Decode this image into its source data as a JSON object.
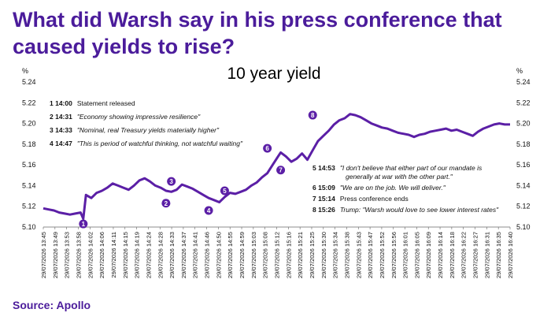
{
  "headline": "What did Warsh say in his press conference that caused yields to rise?",
  "source": "Source: Apollo",
  "chart_data": {
    "type": "line",
    "title": "10 year yield",
    "y_unit": "%",
    "ylim": [
      5.1,
      5.24
    ],
    "yticks": [
      "5.10",
      "5.12",
      "5.14",
      "5.16",
      "5.18",
      "5.20",
      "5.22",
      "5.24"
    ],
    "line_color": "#5b1fa6",
    "xticks": [
      "29/07/2026 13:45",
      "29/07/2026 13:49",
      "29/07/2026 13:53",
      "29/07/2026 13:58",
      "29/07/2026 14:02",
      "29/07/2026 14:06",
      "29/07/2026 14:11",
      "29/07/2026 14:15",
      "29/07/2026 14:19",
      "29/07/2026 14:24",
      "29/07/2026 14:28",
      "29/07/2026 14:33",
      "29/07/2026 14:37",
      "29/07/2026 14:41",
      "29/07/2026 14:46",
      "29/07/2026 14:50",
      "29/07/2026 14:55",
      "29/07/2026 14:59",
      "29/07/2026 15:03",
      "29/07/2026 15:08",
      "29/07/2026 15:12",
      "29/07/2026 15:16",
      "29/07/2026 15:21",
      "29/07/2026 15:25",
      "29/07/2026 15:30",
      "29/07/2026 15:34",
      "29/07/2026 15:38",
      "29/07/2026 15:43",
      "29/07/2026 15:47",
      "29/07/2026 15:52",
      "29/07/2026 15:56",
      "29/07/2026 16:01",
      "29/07/2026 16:05",
      "29/07/2026 16:09",
      "29/07/2026 16:14",
      "29/07/2026 16:18",
      "29/07/2026 16:22",
      "29/07/2026 16:27",
      "29/07/2026 16:31",
      "29/07/2026 16:35",
      "29/07/2026 16:40"
    ],
    "series": [
      {
        "x": [
          "13:45",
          "13:47",
          "13:49",
          "13:51",
          "13:53",
          "13:55",
          "13:57",
          "13:59",
          "14:00",
          "14:01",
          "14:03",
          "14:05",
          "14:07",
          "14:09",
          "14:11",
          "14:13",
          "14:15",
          "14:17",
          "14:19",
          "14:21",
          "14:23",
          "14:25",
          "14:27",
          "14:29",
          "14:31",
          "14:33",
          "14:35",
          "14:37",
          "14:39",
          "14:41",
          "14:43",
          "14:45",
          "14:47",
          "14:49",
          "14:51",
          "14:53",
          "14:55",
          "14:57",
          "14:59",
          "15:01",
          "15:03",
          "15:05",
          "15:07",
          "15:09",
          "15:11",
          "15:13",
          "15:14",
          "15:16",
          "15:18",
          "15:20",
          "15:22",
          "15:24",
          "15:26",
          "15:28",
          "15:30",
          "15:32",
          "15:34",
          "15:36",
          "15:38",
          "15:40",
          "15:42",
          "15:44",
          "15:46",
          "15:48",
          "15:50",
          "15:52",
          "15:54",
          "15:56",
          "15:58",
          "16:00",
          "16:02",
          "16:04",
          "16:06",
          "16:08",
          "16:10",
          "16:12",
          "16:14",
          "16:16",
          "16:18",
          "16:20",
          "16:22",
          "16:24",
          "16:26",
          "16:28",
          "16:30",
          "16:32",
          "16:34",
          "16:36",
          "16:38",
          "16:40"
        ],
        "values": [
          5.118,
          5.117,
          5.116,
          5.114,
          5.113,
          5.112,
          5.113,
          5.114,
          5.108,
          5.131,
          5.128,
          5.133,
          5.135,
          5.138,
          5.142,
          5.14,
          5.138,
          5.136,
          5.14,
          5.145,
          5.147,
          5.144,
          5.14,
          5.138,
          5.135,
          5.134,
          5.136,
          5.141,
          5.139,
          5.137,
          5.134,
          5.131,
          5.128,
          5.126,
          5.124,
          5.129,
          5.133,
          5.132,
          5.134,
          5.136,
          5.14,
          5.143,
          5.148,
          5.152,
          5.16,
          5.168,
          5.172,
          5.168,
          5.163,
          5.166,
          5.171,
          5.165,
          5.174,
          5.183,
          5.188,
          5.193,
          5.199,
          5.203,
          5.205,
          5.209,
          5.208,
          5.206,
          5.203,
          5.2,
          5.198,
          5.196,
          5.195,
          5.193,
          5.191,
          5.19,
          5.189,
          5.187,
          5.189,
          5.19,
          5.192,
          5.193,
          5.194,
          5.195,
          5.193,
          5.194,
          5.192,
          5.19,
          5.188,
          5.192,
          5.195,
          5.197,
          5.199,
          5.2,
          5.199,
          5.199
        ]
      }
    ],
    "annotations_left": [
      {
        "n": "1",
        "time": "14:00",
        "text": "Statement released",
        "italic": false
      },
      {
        "n": "2",
        "time": "14:31",
        "text": "\"Economy showing impressive resilience\"",
        "italic": true
      },
      {
        "n": "3",
        "time": "14:33",
        "text": "\"Nominal, real Treasury yields materially higher\"",
        "italic": true
      },
      {
        "n": "4",
        "time": "14:47",
        "text": "\"This is period of watchful thinking, not watchful waiting\"",
        "italic": true
      }
    ],
    "annotations_right": [
      {
        "n": "5",
        "time": "14:53",
        "lines": [
          "\"I don't believe that either part of our mandate is",
          "generally at war with the other part.\""
        ],
        "italic": true
      },
      {
        "n": "6",
        "time": "15:09",
        "lines": [
          "\"We are on the job. We will deliver.\""
        ],
        "italic": true
      },
      {
        "n": "7",
        "time": "15:14",
        "lines": [
          "Press conference ends"
        ],
        "italic": false
      },
      {
        "n": "8",
        "time": "15:26",
        "lines": [
          "Trump: \"Warsh would love to see lower interest rates\""
        ],
        "italic": true
      }
    ],
    "markers": [
      {
        "n": "1",
        "x": "14:00",
        "value": 5.103
      },
      {
        "n": "2",
        "x": "14:31",
        "value": 5.123
      },
      {
        "n": "3",
        "x": "14:33",
        "value": 5.144
      },
      {
        "n": "4",
        "x": "14:47",
        "value": 5.116
      },
      {
        "n": "5",
        "x": "14:53",
        "value": 5.135
      },
      {
        "n": "6",
        "x": "15:09",
        "value": 5.176
      },
      {
        "n": "7",
        "x": "15:14",
        "value": 5.155
      },
      {
        "n": "8",
        "x": "15:26",
        "value": 5.208
      }
    ]
  }
}
